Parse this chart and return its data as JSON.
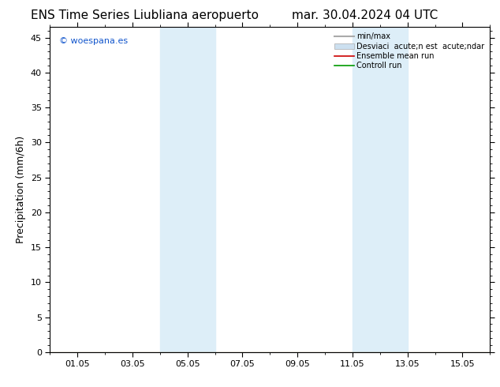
{
  "title_left": "ENS Time Series Liubliana aeropuerto",
  "title_right": "mar. 30.04.2024 04 UTC",
  "ylabel": "Precipitation (mm/6h)",
  "watermark": "© woespana.es",
  "ylim": [
    0,
    46.5
  ],
  "yticks": [
    0,
    5,
    10,
    15,
    20,
    25,
    30,
    35,
    40,
    45
  ],
  "xtick_labels": [
    "01.05",
    "03.05",
    "05.05",
    "07.05",
    "09.05",
    "11.05",
    "13.05",
    "15.05"
  ],
  "xtick_positions": [
    1,
    3,
    5,
    7,
    9,
    11,
    13,
    15
  ],
  "xlim": [
    0,
    16
  ],
  "shaded_regions": [
    {
      "x_start": 4.0,
      "x_end": 5.0,
      "color": "#ddeef8"
    },
    {
      "x_start": 5.0,
      "x_end": 6.0,
      "color": "#ddeef8"
    },
    {
      "x_start": 11.0,
      "x_end": 12.0,
      "color": "#ddeef8"
    },
    {
      "x_start": 12.0,
      "x_end": 13.0,
      "color": "#ddeef8"
    }
  ],
  "legend_labels": [
    "min/max",
    "Desviaci  acute;n est  acute;ndar",
    "Ensemble mean run",
    "Controll run"
  ],
  "legend_colors": [
    "#aaaaaa",
    "#cce0f0",
    "#cc0000",
    "#009900"
  ],
  "background_color": "#ffffff",
  "plot_bg_color": "#ffffff",
  "border_color": "#000000",
  "watermark_color": "#1155cc",
  "title_fontsize": 11,
  "tick_fontsize": 8,
  "ylabel_fontsize": 9
}
